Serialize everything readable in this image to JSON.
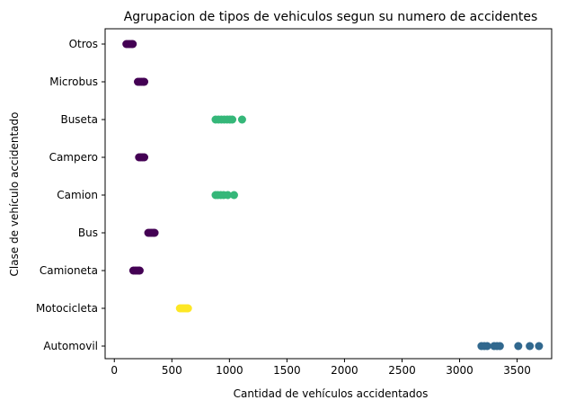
{
  "chart_data": {
    "type": "scatter",
    "title": "Agrupacion de tipos de vehiculos segun su numero de accidentes",
    "xlabel": "Cantidad de vehículos accidentados",
    "ylabel": "Clase de vehículo accidentado",
    "xlim": [
      -80,
      3800
    ],
    "x_ticks": [
      0,
      500,
      1000,
      1500,
      2000,
      2500,
      3000,
      3500
    ],
    "categories": [
      "Automovil",
      "Motocicleta",
      "Camioneta",
      "Bus",
      "Camion",
      "Campero",
      "Buseta",
      "Microbus",
      "Otros"
    ],
    "grid": false,
    "legend": "none",
    "cluster_colors": [
      "#440154",
      "#31688e",
      "#35b779",
      "#fde725"
    ],
    "points": [
      {
        "category": "Automovil",
        "x": 3190,
        "cluster": 1
      },
      {
        "category": "Automovil",
        "x": 3215,
        "cluster": 1
      },
      {
        "category": "Automovil",
        "x": 3240,
        "cluster": 1
      },
      {
        "category": "Automovil",
        "x": 3300,
        "cluster": 1
      },
      {
        "category": "Automovil",
        "x": 3325,
        "cluster": 1
      },
      {
        "category": "Automovil",
        "x": 3350,
        "cluster": 1
      },
      {
        "category": "Automovil",
        "x": 3510,
        "cluster": 1
      },
      {
        "category": "Automovil",
        "x": 3610,
        "cluster": 1
      },
      {
        "category": "Automovil",
        "x": 3690,
        "cluster": 1
      },
      {
        "category": "Motocicleta",
        "x": 570,
        "cluster": 3
      },
      {
        "category": "Motocicleta",
        "x": 585,
        "cluster": 3
      },
      {
        "category": "Motocicleta",
        "x": 600,
        "cluster": 3
      },
      {
        "category": "Motocicleta",
        "x": 615,
        "cluster": 3
      },
      {
        "category": "Motocicleta",
        "x": 630,
        "cluster": 3
      },
      {
        "category": "Motocicleta",
        "x": 640,
        "cluster": 3
      },
      {
        "category": "Camioneta",
        "x": 165,
        "cluster": 0
      },
      {
        "category": "Camioneta",
        "x": 180,
        "cluster": 0
      },
      {
        "category": "Camioneta",
        "x": 195,
        "cluster": 0
      },
      {
        "category": "Camioneta",
        "x": 210,
        "cluster": 0
      },
      {
        "category": "Camioneta",
        "x": 220,
        "cluster": 0
      },
      {
        "category": "Bus",
        "x": 295,
        "cluster": 0
      },
      {
        "category": "Bus",
        "x": 310,
        "cluster": 0
      },
      {
        "category": "Bus",
        "x": 325,
        "cluster": 0
      },
      {
        "category": "Bus",
        "x": 340,
        "cluster": 0
      },
      {
        "category": "Bus",
        "x": 350,
        "cluster": 0
      },
      {
        "category": "Camion",
        "x": 880,
        "cluster": 2
      },
      {
        "category": "Camion",
        "x": 900,
        "cluster": 2
      },
      {
        "category": "Camion",
        "x": 925,
        "cluster": 2
      },
      {
        "category": "Camion",
        "x": 950,
        "cluster": 2
      },
      {
        "category": "Camion",
        "x": 985,
        "cluster": 2
      },
      {
        "category": "Camion",
        "x": 1040,
        "cluster": 2
      },
      {
        "category": "Campero",
        "x": 215,
        "cluster": 0
      },
      {
        "category": "Campero",
        "x": 230,
        "cluster": 0
      },
      {
        "category": "Campero",
        "x": 245,
        "cluster": 0
      },
      {
        "category": "Campero",
        "x": 260,
        "cluster": 0
      },
      {
        "category": "Buseta",
        "x": 880,
        "cluster": 2
      },
      {
        "category": "Buseta",
        "x": 905,
        "cluster": 2
      },
      {
        "category": "Buseta",
        "x": 930,
        "cluster": 2
      },
      {
        "category": "Buseta",
        "x": 955,
        "cluster": 2
      },
      {
        "category": "Buseta",
        "x": 980,
        "cluster": 2
      },
      {
        "category": "Buseta",
        "x": 1005,
        "cluster": 2
      },
      {
        "category": "Buseta",
        "x": 1025,
        "cluster": 2
      },
      {
        "category": "Buseta",
        "x": 1110,
        "cluster": 2
      },
      {
        "category": "Microbus",
        "x": 205,
        "cluster": 0
      },
      {
        "category": "Microbus",
        "x": 220,
        "cluster": 0
      },
      {
        "category": "Microbus",
        "x": 235,
        "cluster": 0
      },
      {
        "category": "Microbus",
        "x": 250,
        "cluster": 0
      },
      {
        "category": "Microbus",
        "x": 260,
        "cluster": 0
      },
      {
        "category": "Otros",
        "x": 105,
        "cluster": 0
      },
      {
        "category": "Otros",
        "x": 120,
        "cluster": 0
      },
      {
        "category": "Otros",
        "x": 135,
        "cluster": 0
      },
      {
        "category": "Otros",
        "x": 150,
        "cluster": 0
      },
      {
        "category": "Otros",
        "x": 160,
        "cluster": 0
      }
    ]
  }
}
